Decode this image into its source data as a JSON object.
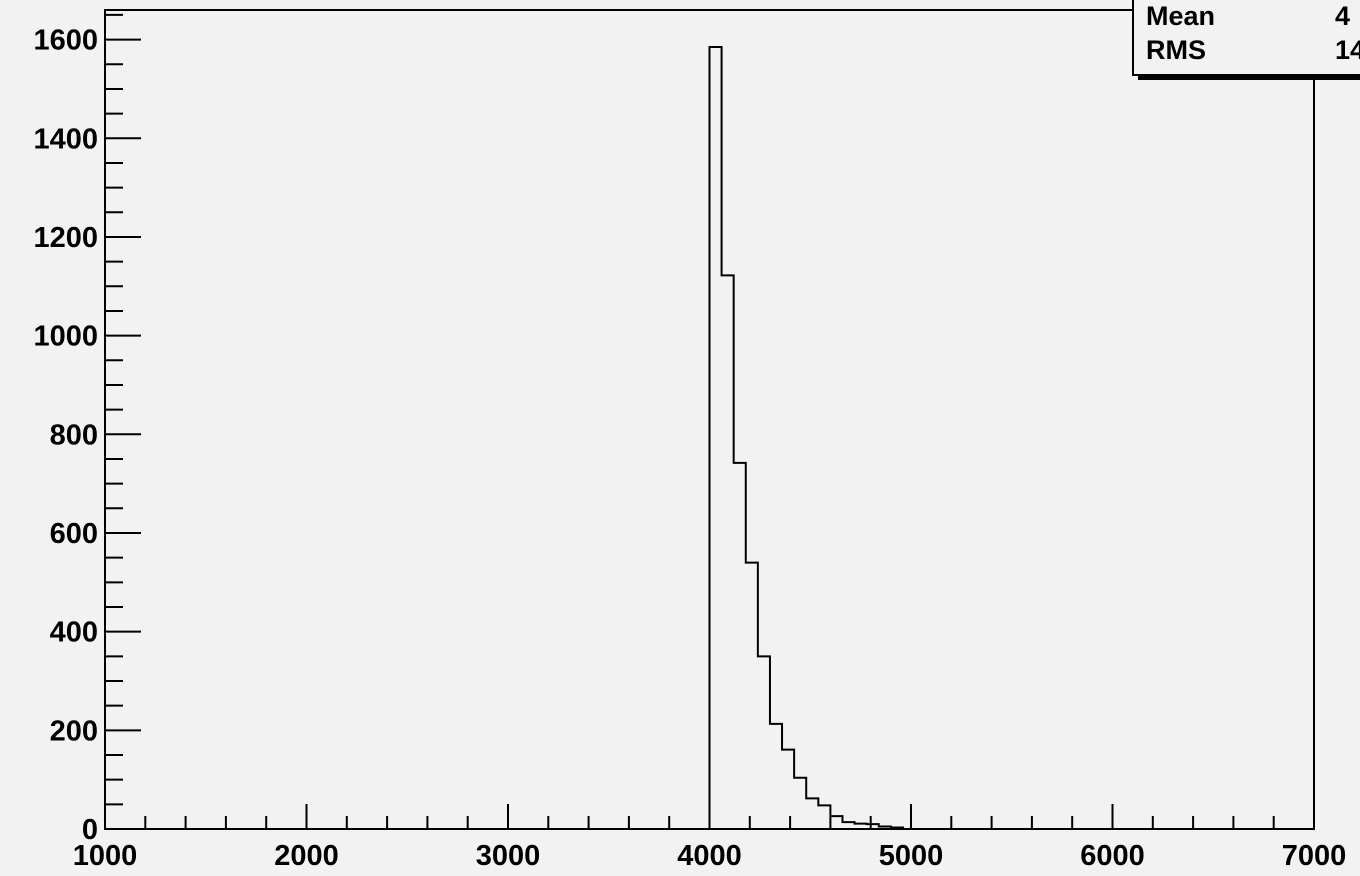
{
  "chart_data": {
    "type": "bar",
    "title": "",
    "xlabel": "",
    "ylabel": "",
    "xlim": [
      1000,
      7000
    ],
    "ylim": [
      0,
      1660
    ],
    "x_ticks": [
      1000,
      2000,
      3000,
      4000,
      5000,
      6000,
      7000
    ],
    "y_ticks": [
      0,
      200,
      400,
      600,
      800,
      1000,
      1200,
      1400,
      1600
    ],
    "bin_width": 60,
    "bin_start": 4000,
    "values": [
      1585,
      1122,
      742,
      540,
      350,
      213,
      161,
      104,
      62,
      48,
      26,
      14,
      11,
      10,
      5,
      3
    ],
    "grid": false,
    "stats_box": {
      "rows": [
        {
          "label": "Mean",
          "value": "4"
        },
        {
          "label": "RMS",
          "value": "14"
        }
      ]
    }
  }
}
